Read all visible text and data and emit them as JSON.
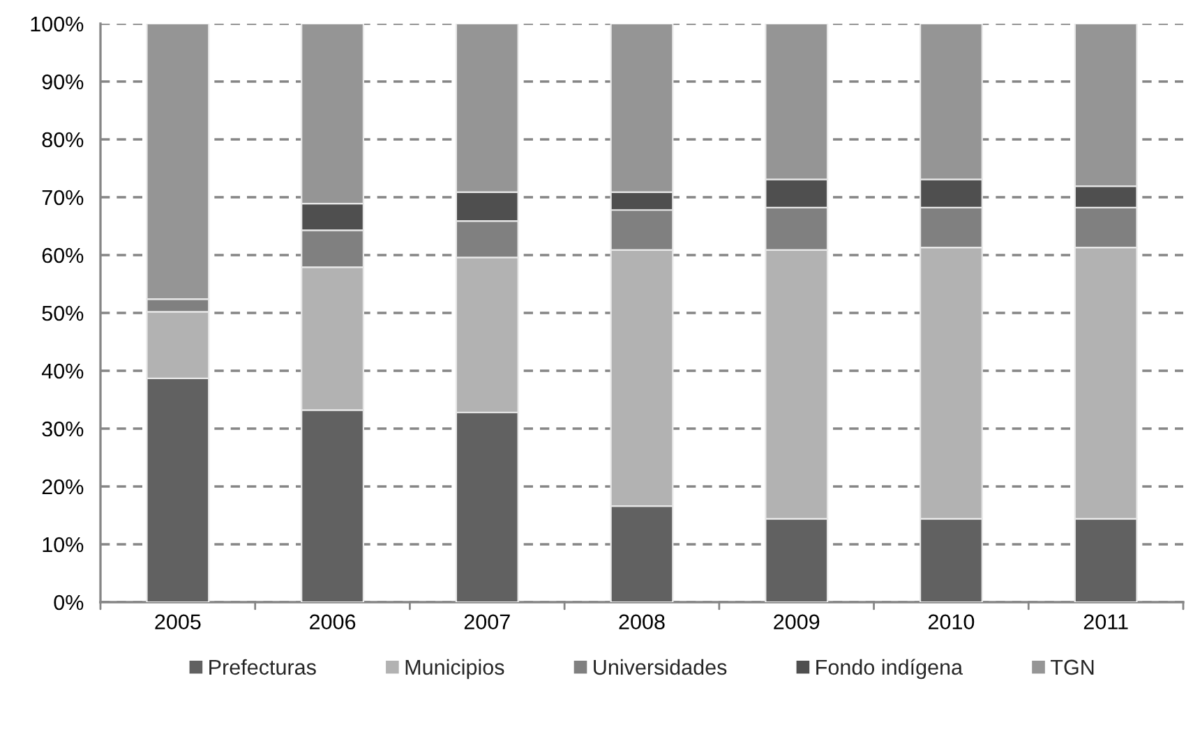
{
  "chart_data": {
    "type": "bar",
    "stacked": true,
    "categories": [
      "2005",
      "2006",
      "2007",
      "2008",
      "2009",
      "2010",
      "2011"
    ],
    "series": [
      {
        "name": "Prefecturas",
        "color": "#616161",
        "values": [
          38.7,
          33.2,
          32.8,
          16.6,
          14.4,
          14.4,
          14.4
        ]
      },
      {
        "name": "Municipios",
        "color": "#b2b2b2",
        "values": [
          11.5,
          24.7,
          26.8,
          44.3,
          46.5,
          46.9,
          46.9
        ]
      },
      {
        "name": "Universidades",
        "color": "#808080",
        "values": [
          2.2,
          6.4,
          6.3,
          6.9,
          7.3,
          6.9,
          6.9
        ]
      },
      {
        "name": "Fondo indígena",
        "color": "#4f4f4f",
        "values": [
          0,
          4.6,
          5.0,
          3.1,
          4.9,
          4.9,
          3.7
        ]
      },
      {
        "name": "TGN",
        "color": "#959595",
        "values": [
          47.6,
          31.1,
          29.1,
          29.1,
          26.9,
          26.9,
          28.1
        ]
      }
    ],
    "ylim": [
      0,
      100
    ],
    "yticks": [
      {
        "value": 0,
        "label": "0%"
      },
      {
        "value": 10,
        "label": "10%"
      },
      {
        "value": 20,
        "label": "20%"
      },
      {
        "value": 30,
        "label": "30%"
      },
      {
        "value": 40,
        "label": "40%"
      },
      {
        "value": 50,
        "label": "50%"
      },
      {
        "value": 60,
        "label": "60%"
      },
      {
        "value": 70,
        "label": "70%"
      },
      {
        "value": 80,
        "label": "80%"
      },
      {
        "value": 90,
        "label": "90%"
      },
      {
        "value": 100,
        "label": "100%"
      }
    ],
    "grid": "y",
    "line_style": "dashed",
    "legend": "bottom"
  }
}
